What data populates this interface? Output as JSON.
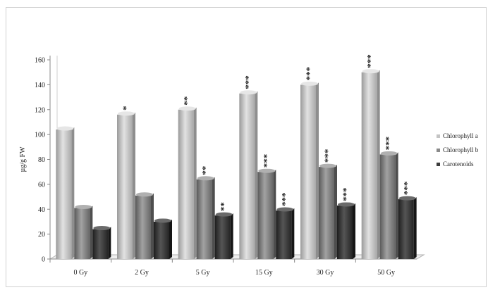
{
  "chart_data": {
    "type": "bar",
    "title": "",
    "xlabel": "",
    "ylabel": "µg/g FW",
    "ylim": [
      0,
      160
    ],
    "yticks": [
      0,
      20,
      40,
      60,
      80,
      100,
      120,
      140,
      160
    ],
    "categories": [
      "0 Gy",
      "2 Gy",
      "5 Gy",
      "15 Gy",
      "30 Gy",
      "50 Gy"
    ],
    "series": [
      {
        "name": "Chlorophyll a",
        "color": "#c4c4c4",
        "values": [
          104,
          116,
          120,
          133,
          140,
          150
        ],
        "significance": [
          "",
          "*",
          "**",
          "***",
          "***",
          "***"
        ]
      },
      {
        "name": "Chlorophyll b",
        "color": "#8a8a8a",
        "values": [
          41,
          51,
          64,
          70,
          74,
          84
        ],
        "significance": [
          "",
          "",
          "**",
          "***",
          "***",
          "***"
        ]
      },
      {
        "name": "Carotenoids",
        "color": "#3c3c3c",
        "values": [
          24,
          30,
          35,
          39,
          43,
          48
        ],
        "significance": [
          "",
          "",
          "**",
          "***",
          "***",
          "***"
        ]
      }
    ],
    "grid": false,
    "legend_position": "right"
  }
}
